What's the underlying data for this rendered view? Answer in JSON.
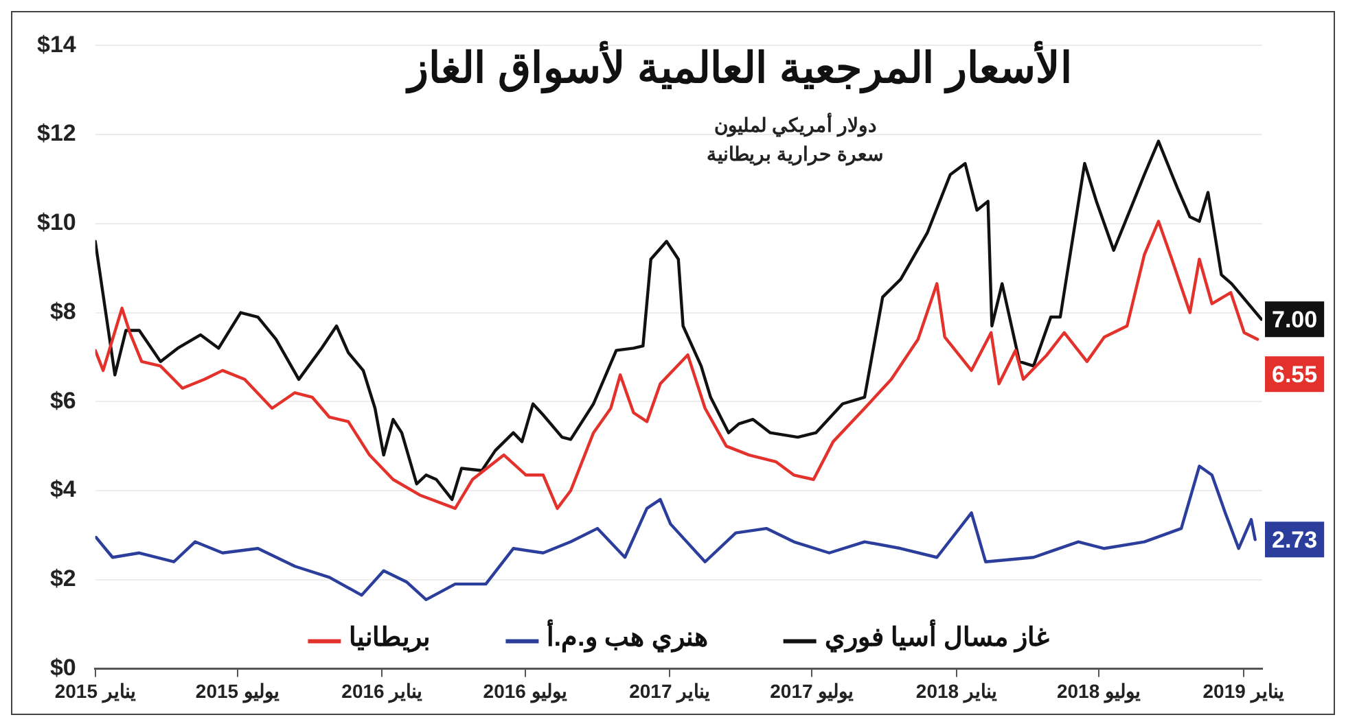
{
  "chart_data": {
    "type": "line",
    "title": "الأسعار المرجعية العالمية لأسواق الغاز",
    "subtitle": "دولار أمريكي لمليون\nسعرة حرارية بريطانية",
    "xlim": [
      "2015-01-01",
      "2019-01-25"
    ],
    "xticks": [
      {
        "value": "2015-01-01",
        "label": "يناير 2015"
      },
      {
        "value": "2015-07-01",
        "label": "يوليو 2015"
      },
      {
        "value": "2016-01-01",
        "label": "يناير 2016"
      },
      {
        "value": "2016-07-01",
        "label": "يوليو 2016"
      },
      {
        "value": "2017-01-01",
        "label": "يناير 2017"
      },
      {
        "value": "2017-07-01",
        "label": "يوليو 2017"
      },
      {
        "value": "2018-01-01",
        "label": "يناير 2018"
      },
      {
        "value": "2018-07-01",
        "label": "يوليو 2018"
      },
      {
        "value": "2019-01-01",
        "label": "يناير 2019"
      }
    ],
    "ylim": [
      0,
      14
    ],
    "yticks": [
      {
        "value": 0,
        "label": "$0"
      },
      {
        "value": 2,
        "label": "$2"
      },
      {
        "value": 4,
        "label": "$4"
      },
      {
        "value": 6,
        "label": "$6"
      },
      {
        "value": 8,
        "label": "$8"
      },
      {
        "value": 10,
        "label": "$10"
      },
      {
        "value": 12,
        "label": "$12"
      },
      {
        "value": 14,
        "label": "$14"
      }
    ],
    "grid": "y",
    "legend": "bottom",
    "marker": "none",
    "line_style": "solid",
    "annotations": [
      "6.55",
      "2.73",
      "7.00"
    ],
    "series": [
      {
        "name": "بريطانيا",
        "color": "#e3312b",
        "x": [
          "2015-01-01",
          "2015-01-11",
          "2015-02-04",
          "2015-02-14",
          "2015-03-01",
          "2015-03-25",
          "2015-04-22",
          "2015-05-20",
          "2015-06-12",
          "2015-07-10",
          "2015-08-14",
          "2015-09-12",
          "2015-10-04",
          "2015-10-26",
          "2015-11-19",
          "2015-12-16",
          "2016-01-15",
          "2016-02-18",
          "2016-04-03",
          "2016-04-25",
          "2016-06-04",
          "2016-07-02",
          "2016-07-24",
          "2016-08-11",
          "2016-08-28",
          "2016-09-26",
          "2016-10-18",
          "2016-10-30",
          "2016-11-16",
          "2016-12-03",
          "2016-12-20",
          "2017-01-24",
          "2017-02-15",
          "2017-03-14",
          "2017-04-12",
          "2017-05-16",
          "2017-06-08",
          "2017-07-03",
          "2017-07-28",
          "2017-09-06",
          "2017-10-10",
          "2017-11-13",
          "2017-12-07",
          "2017-12-17",
          "2018-01-20",
          "2018-02-14",
          "2018-02-24",
          "2018-03-17",
          "2018-03-27",
          "2018-04-26",
          "2018-05-18",
          "2018-06-16",
          "2018-07-08",
          "2018-08-06",
          "2018-08-28",
          "2018-09-15",
          "2018-10-02",
          "2018-10-25",
          "2018-11-06",
          "2018-11-22",
          "2018-12-16",
          "2019-01-02",
          "2019-01-19"
        ],
        "values": [
          7.15,
          6.7,
          8.1,
          7.55,
          6.9,
          6.8,
          6.3,
          6.5,
          6.7,
          6.5,
          5.85,
          6.2,
          6.1,
          5.65,
          5.55,
          4.8,
          4.25,
          3.9,
          3.6,
          4.25,
          4.8,
          4.35,
          4.35,
          3.6,
          4.0,
          5.3,
          5.85,
          6.6,
          5.75,
          5.55,
          6.4,
          7.05,
          5.85,
          5.0,
          4.8,
          4.65,
          4.35,
          4.25,
          5.1,
          5.85,
          6.5,
          7.4,
          8.65,
          7.45,
          6.7,
          7.55,
          6.4,
          7.15,
          6.5,
          7.05,
          7.55,
          6.9,
          7.45,
          7.7,
          9.3,
          10.05,
          9.2,
          8.0,
          9.2,
          8.2,
          8.45,
          7.55,
          7.4
        ]
      },
      {
        "name": "هنري هب و.م.أ",
        "color": "#2c3e9c",
        "x": [
          "2015-01-02",
          "2015-01-23",
          "2015-02-26",
          "2015-04-11",
          "2015-05-08",
          "2015-06-12",
          "2015-07-27",
          "2015-09-12",
          "2015-10-26",
          "2015-12-06",
          "2016-01-03",
          "2016-02-01",
          "2016-02-26",
          "2016-04-03",
          "2016-05-12",
          "2016-06-16",
          "2016-07-24",
          "2016-08-28",
          "2016-10-01",
          "2016-11-05",
          "2016-12-03",
          "2016-12-20",
          "2017-01-02",
          "2017-02-15",
          "2017-03-26",
          "2017-05-04",
          "2017-06-08",
          "2017-07-23",
          "2017-09-06",
          "2017-10-22",
          "2017-12-07",
          "2018-01-20",
          "2018-02-07",
          "2018-04-09",
          "2018-06-05",
          "2018-07-08",
          "2018-08-28",
          "2018-10-14",
          "2018-11-06",
          "2018-11-22",
          "2018-12-09",
          "2018-12-26",
          "2019-01-11",
          "2019-01-16"
        ],
        "values": [
          2.95,
          2.5,
          2.6,
          2.4,
          2.85,
          2.6,
          2.7,
          2.3,
          2.05,
          1.65,
          2.2,
          1.95,
          1.55,
          1.9,
          1.9,
          2.7,
          2.6,
          2.85,
          3.15,
          2.5,
          3.6,
          3.8,
          3.25,
          2.4,
          3.05,
          3.15,
          2.85,
          2.6,
          2.85,
          2.7,
          2.5,
          3.5,
          2.4,
          2.5,
          2.85,
          2.7,
          2.85,
          3.15,
          4.55,
          4.35,
          3.5,
          2.7,
          3.35,
          2.9
        ]
      },
      {
        "name": "غاز مسال أسيا فوري",
        "color": "#111111",
        "x": [
          "2015-01-01",
          "2015-01-26",
          "2015-02-09",
          "2015-02-26",
          "2015-03-25",
          "2015-04-16",
          "2015-05-15",
          "2015-06-07",
          "2015-07-05",
          "2015-07-27",
          "2015-08-19",
          "2015-09-17",
          "2015-10-16",
          "2015-11-04",
          "2015-11-19",
          "2015-12-08",
          "2015-12-23",
          "2016-01-03",
          "2016-01-15",
          "2016-01-26",
          "2016-02-14",
          "2016-02-26",
          "2016-03-10",
          "2016-03-30",
          "2016-04-11",
          "2016-05-07",
          "2016-05-24",
          "2016-06-16",
          "2016-06-27",
          "2016-07-11",
          "2016-07-24",
          "2016-08-17",
          "2016-08-28",
          "2016-09-26",
          "2016-10-25",
          "2016-11-16",
          "2016-11-28",
          "2016-12-08",
          "2016-12-28",
          "2017-01-12",
          "2017-01-18",
          "2017-02-10",
          "2017-02-22",
          "2017-03-17",
          "2017-03-30",
          "2017-04-17",
          "2017-05-09",
          "2017-06-13",
          "2017-07-06",
          "2017-08-09",
          "2017-09-06",
          "2017-09-29",
          "2017-10-22",
          "2017-11-25",
          "2017-12-24",
          "2018-01-12",
          "2018-01-27",
          "2018-02-10",
          "2018-02-15",
          "2018-02-28",
          "2018-03-22",
          "2018-04-09",
          "2018-05-01",
          "2018-05-13",
          "2018-06-13",
          "2018-06-28",
          "2018-07-20",
          "2018-08-12",
          "2018-08-28",
          "2018-09-15",
          "2018-10-09",
          "2018-10-25",
          "2018-11-06",
          "2018-11-17",
          "2018-12-04",
          "2018-12-17",
          "2019-01-24"
        ],
        "values": [
          9.6,
          6.6,
          7.6,
          7.6,
          6.9,
          7.2,
          7.5,
          7.2,
          8.0,
          7.9,
          7.4,
          6.5,
          7.2,
          7.7,
          7.1,
          6.7,
          5.85,
          4.8,
          5.6,
          5.3,
          4.15,
          4.35,
          4.25,
          3.8,
          4.5,
          4.45,
          4.9,
          5.3,
          5.1,
          5.95,
          5.7,
          5.2,
          5.15,
          5.95,
          7.15,
          7.2,
          7.25,
          9.2,
          9.6,
          9.2,
          7.7,
          6.8,
          6.1,
          5.3,
          5.5,
          5.6,
          5.3,
          5.2,
          5.3,
          5.95,
          6.1,
          8.35,
          8.75,
          9.8,
          11.1,
          11.35,
          10.3,
          10.5,
          7.7,
          8.65,
          6.9,
          6.8,
          7.9,
          7.9,
          11.35,
          10.5,
          9.4,
          10.4,
          11.1,
          11.85,
          10.8,
          10.15,
          10.05,
          10.7,
          8.85,
          8.65,
          7.85
        ]
      }
    ]
  }
}
